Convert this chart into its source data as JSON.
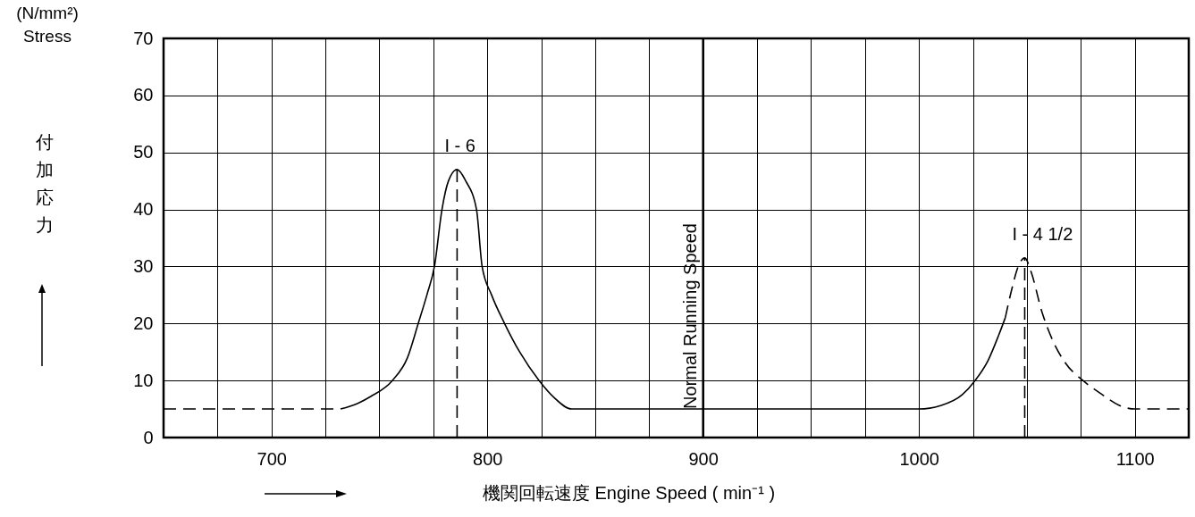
{
  "chart_data": {
    "type": "line",
    "xlabel": "機関回転速度  Engine Speed ( min⁻¹ )",
    "ylabel": "付加応力",
    "xlim": [
      650,
      1125
    ],
    "xticks": [
      {
        "value": 650,
        "label": null
      },
      {
        "value": 675,
        "label": null
      },
      700,
      {
        "value": 725,
        "label": null
      },
      {
        "value": 750,
        "label": null
      },
      {
        "value": 775,
        "label": null
      },
      800,
      {
        "value": 825,
        "label": null
      },
      {
        "value": 850,
        "label": null
      },
      {
        "value": 875,
        "label": null
      },
      900,
      {
        "value": 925,
        "label": null
      },
      {
        "value": 950,
        "label": null
      },
      {
        "value": 975,
        "label": null
      },
      1000,
      {
        "value": 1025,
        "label": null
      },
      {
        "value": 1050,
        "label": null
      },
      {
        "value": 1075,
        "label": null
      },
      1100
    ],
    "ylim": [
      0,
      70
    ],
    "yticks": [
      0,
      10,
      20,
      30,
      40,
      50,
      60,
      70
    ],
    "grid": true,
    "marker": "none",
    "series": [
      {
        "color": "#000000",
        "line_style": "dashed",
        "x": [
          650,
          732
        ],
        "values": [
          5,
          5
        ]
      },
      {
        "color": "#000000",
        "line_style": "solid",
        "x": [
          732,
          740,
          746,
          756,
          763,
          768,
          772,
          775.5,
          779,
          782,
          786,
          790,
          795,
          797.6,
          802,
          808,
          815,
          824,
          831,
          839,
          1000,
          1010,
          1020,
          1026,
          1032,
          1037,
          1040
        ],
        "values": [
          5,
          6,
          7.2,
          10,
          14,
          20,
          25,
          30,
          40,
          45,
          47,
          45,
          40,
          30,
          25,
          20,
          15,
          10,
          7,
          5,
          5,
          5.6,
          7.5,
          10,
          13.5,
          18,
          21
        ]
      },
      {
        "color": "#000000",
        "line_style": "dashed",
        "x": [
          1040,
          1043,
          1046,
          1049,
          1052,
          1057,
          1062,
          1068,
          1076,
          1085,
          1093,
          1100,
          1125
        ],
        "values": [
          21,
          26,
          30,
          31.5,
          29,
          22,
          17,
          13,
          10,
          7.5,
          5.6,
          5,
          5
        ]
      },
      {
        "color": "#000000",
        "line_style": "dashed",
        "x": [
          786,
          786
        ],
        "values": [
          0,
          47
        ]
      },
      {
        "color": "#000000",
        "line_style": "dashed",
        "x": [
          1049,
          1049
        ],
        "values": [
          0,
          31.5
        ]
      }
    ],
    "ref_lines": [
      {
        "axis": "x",
        "value": 900,
        "label": "Normal Running Speed"
      }
    ],
    "annotations": [
      {
        "text": "I - 6",
        "x": 786,
        "y": 47
      },
      {
        "text": "I - 4 1/2",
        "x": 1049,
        "y": 31.5
      },
      "(N/mm²)",
      "Stress"
    ]
  }
}
